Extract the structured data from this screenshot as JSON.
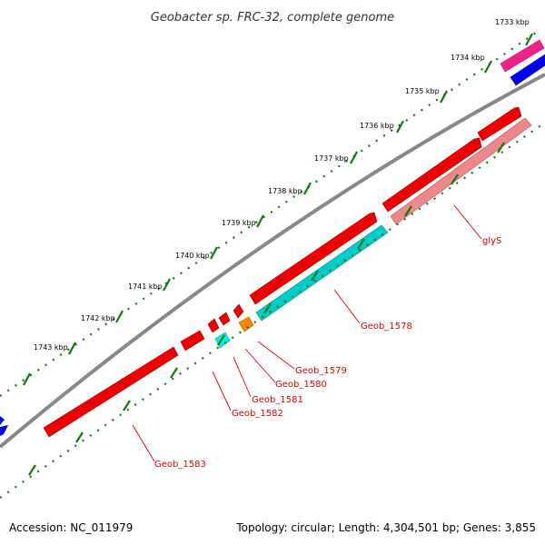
{
  "title": "Geobacter sp. FRC-32, complete genome",
  "footer": {
    "accession": "Accession: NC_011979",
    "summary": "Topology: circular; Length: 4,304,501 bp; Genes: 3,855"
  },
  "ticks": [
    "1733 kbp",
    "1734 kbp",
    "1735 kbp",
    "1736 kbp",
    "1737 kbp",
    "1738 kbp",
    "1739 kbp",
    "1740 kbp",
    "1741 kbp",
    "1742 kbp",
    "1743 kbp"
  ],
  "gene_labels": [
    "glyS",
    "Geob_1578",
    "Geob_1579",
    "Geob_1580",
    "Geob_1581",
    "Geob_1582",
    "Geob_1583"
  ],
  "colors": {
    "cds_red": "#ee0000",
    "cds_pink": "#ee8888",
    "cds_cyan": "#00cccc",
    "cds_orange": "#ff8800",
    "cds_blue": "#0000ee",
    "cds_magenta": "#ee2288",
    "backbone": "#888888",
    "tick": "#117711",
    "leader": "#dd0000"
  }
}
